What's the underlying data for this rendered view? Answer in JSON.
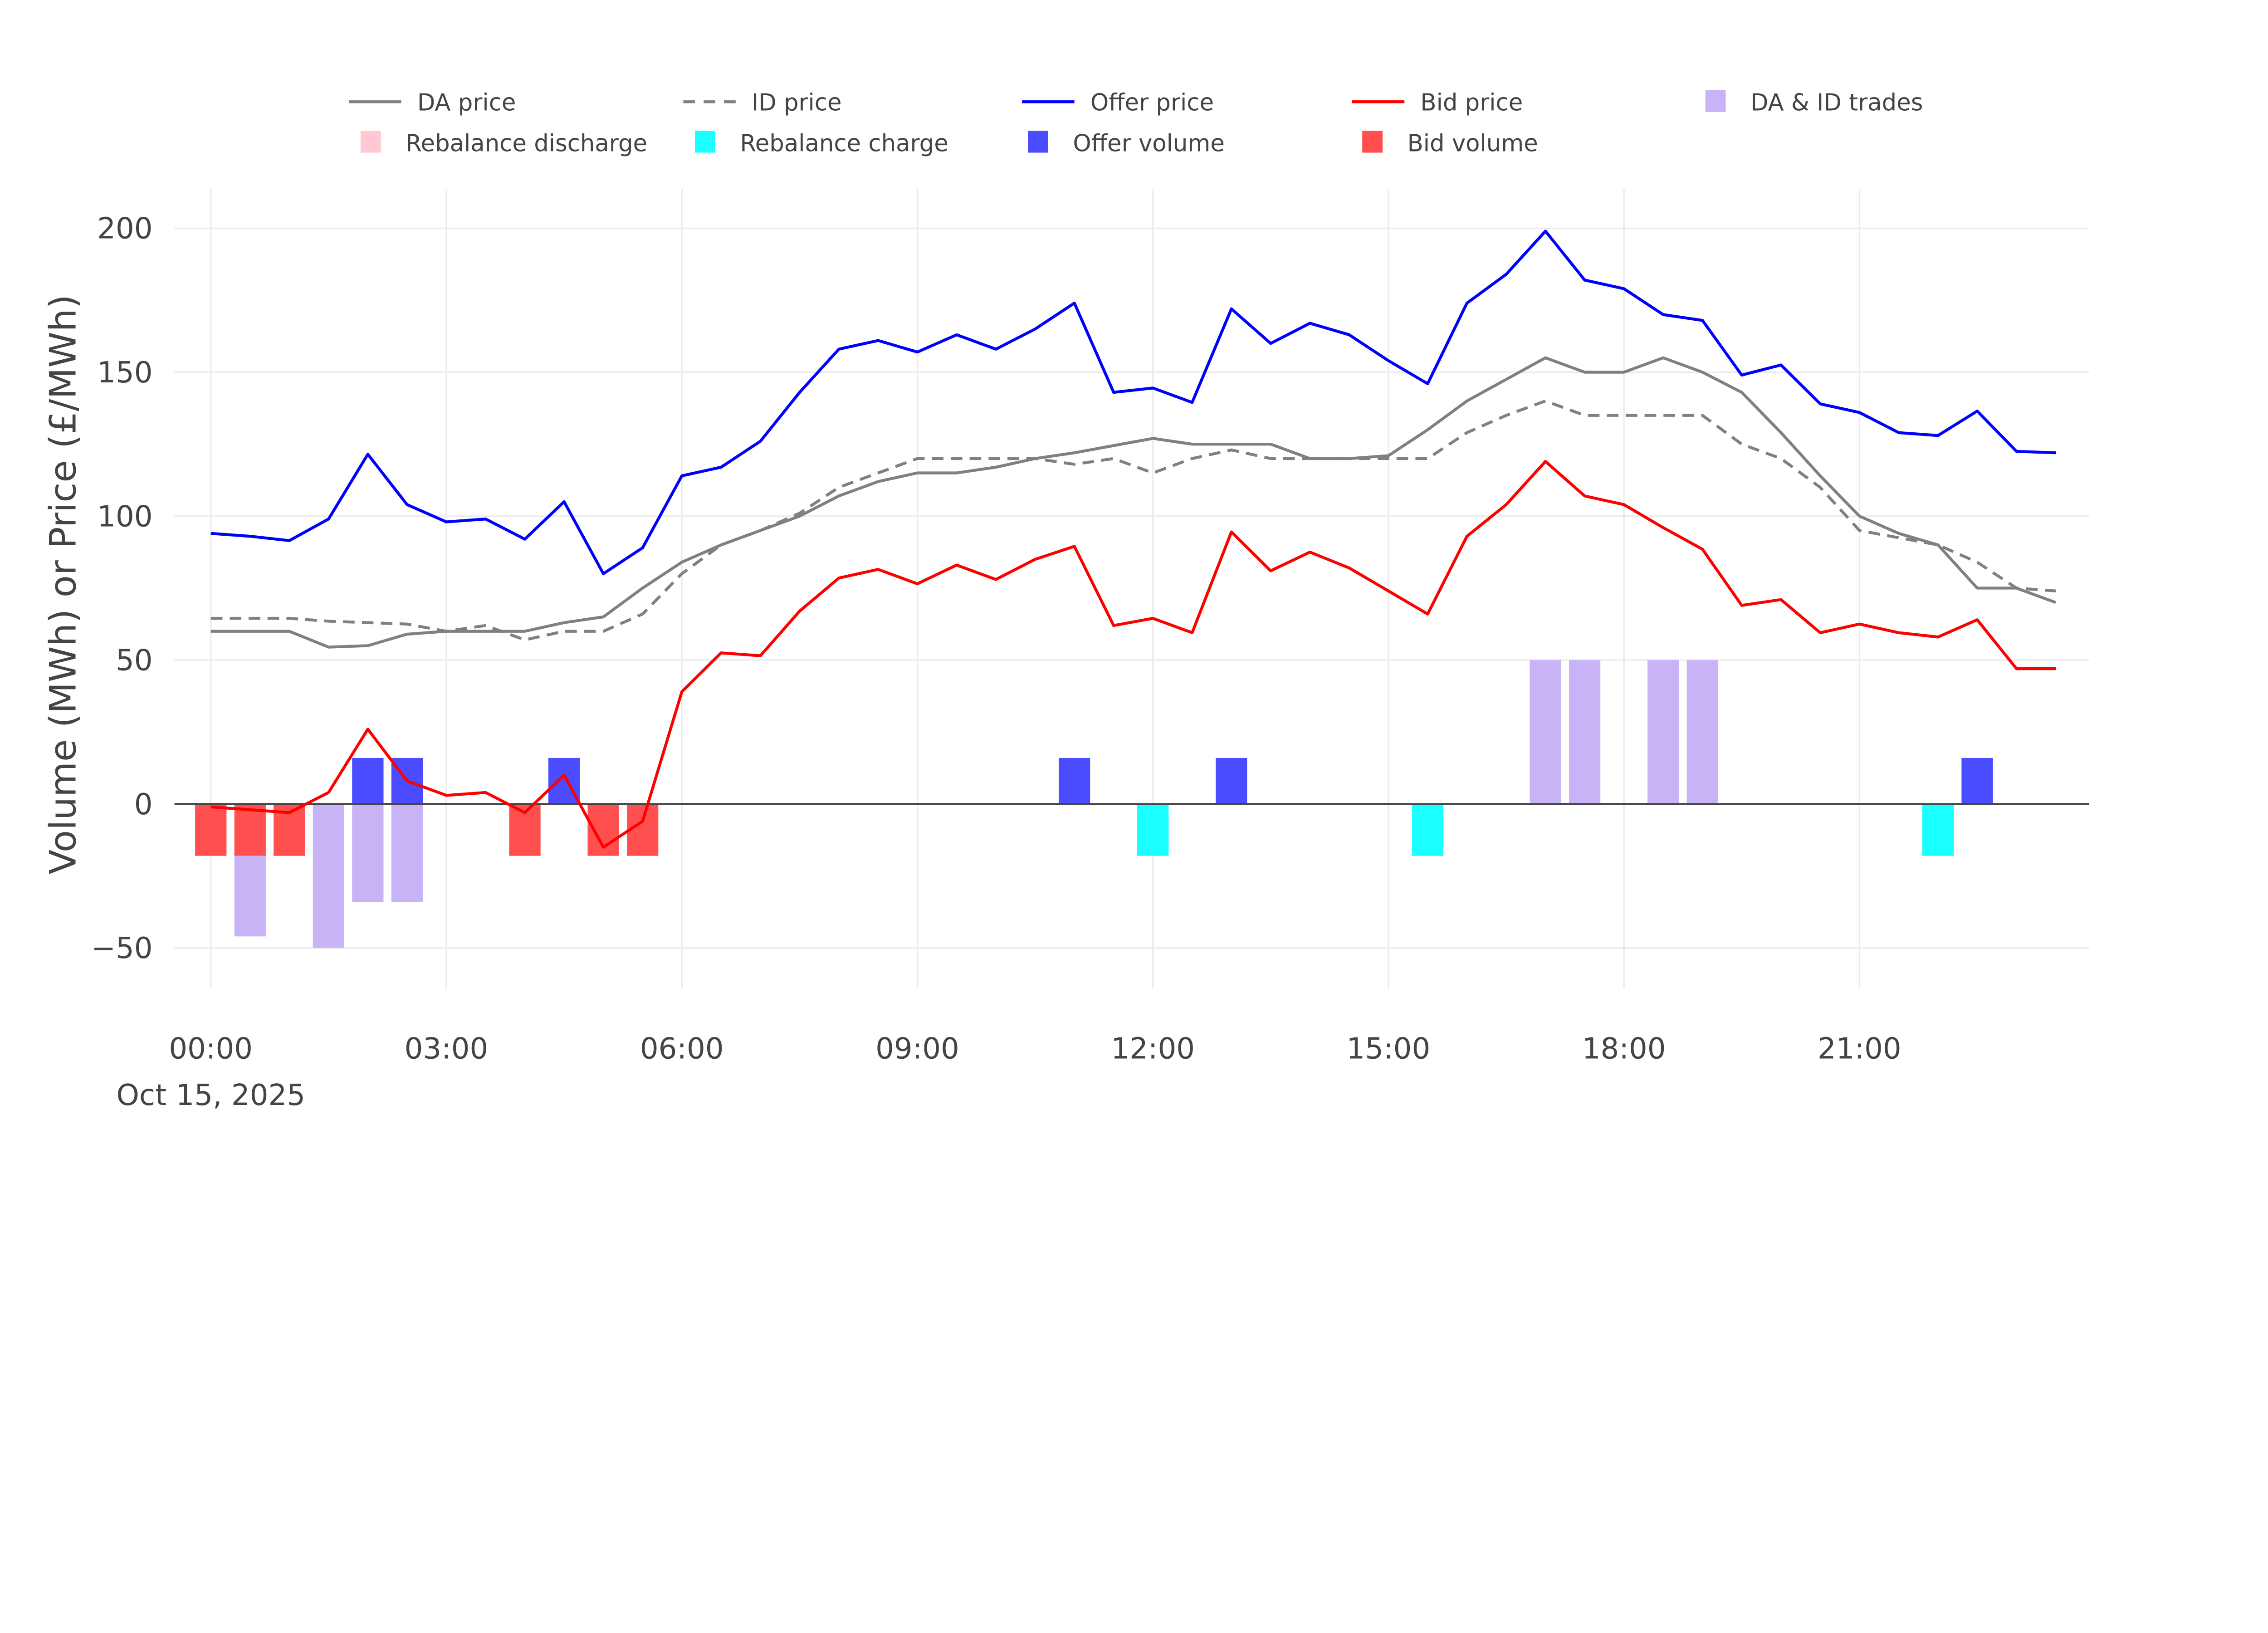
{
  "chart_data": {
    "type": "line+bar",
    "title": "",
    "xlabel": "",
    "ylabel": "Volume (MWh) or Price (£/MWh)",
    "ylim": [
      -62,
      215
    ],
    "xlim_hours": [
      -0.5,
      24
    ],
    "grid": true,
    "legend_placement": "top-center",
    "date_label": "Oct 15, 2025",
    "x_ticks": [
      "00:00",
      "03:00",
      "06:00",
      "09:00",
      "12:00",
      "15:00",
      "18:00",
      "21:00"
    ],
    "y_ticks": [
      -50,
      0,
      50,
      100,
      150,
      200
    ],
    "times": [
      "00:00",
      "00:30",
      "01:00",
      "01:30",
      "02:00",
      "02:30",
      "03:00",
      "03:30",
      "04:00",
      "04:30",
      "05:00",
      "05:30",
      "06:00",
      "06:30",
      "07:00",
      "07:30",
      "08:00",
      "08:30",
      "09:00",
      "09:30",
      "10:00",
      "10:30",
      "11:00",
      "11:30",
      "12:00",
      "12:30",
      "13:00",
      "13:30",
      "14:00",
      "14:30",
      "15:00",
      "15:30",
      "16:00",
      "16:30",
      "17:00",
      "17:30",
      "18:00",
      "18:30",
      "19:00",
      "19:30",
      "20:00",
      "20:30",
      "21:00",
      "21:30",
      "22:00",
      "22:30",
      "23:00",
      "23:30"
    ],
    "line_series": [
      {
        "name": "DA price",
        "color": "#808080",
        "dash": false,
        "values": [
          60,
          60,
          60,
          54.5,
          55,
          59,
          60,
          60,
          60,
          63,
          65,
          75,
          84,
          90,
          95,
          100,
          107,
          112,
          115,
          115,
          117,
          120,
          122,
          124.5,
          127,
          125,
          125,
          125,
          120,
          120,
          121,
          130,
          140,
          147.5,
          155,
          150,
          150,
          155,
          150,
          143,
          129,
          114,
          100,
          94,
          90,
          75,
          75,
          70
        ]
      },
      {
        "name": "ID price",
        "color": "#808080",
        "dash": true,
        "values": [
          64.5,
          64.5,
          64.5,
          63.5,
          63,
          62.5,
          60,
          62,
          57,
          60,
          60,
          66,
          80,
          90,
          95,
          101,
          110,
          115,
          120,
          120,
          120,
          120,
          118,
          120,
          115,
          120,
          123,
          120,
          120,
          120,
          120,
          120,
          129,
          135,
          140,
          135,
          135,
          135,
          135,
          125,
          120,
          110,
          95,
          92.5,
          90,
          84,
          75,
          74
        ]
      },
      {
        "name": "Offer price",
        "color": "#0000ff",
        "dash": false,
        "values": [
          94,
          93,
          91.5,
          99,
          121.5,
          104,
          98,
          99,
          92,
          105,
          80,
          89,
          114,
          117,
          126,
          143,
          158,
          161,
          157,
          163,
          158,
          165,
          174,
          143,
          144.5,
          139.5,
          172,
          160,
          167,
          163,
          154,
          146,
          174,
          184,
          199,
          182,
          179,
          170,
          168,
          149,
          152.5,
          139,
          136,
          129,
          128,
          136.5,
          122.5,
          122
        ]
      },
      {
        "name": "Bid price",
        "color": "#ff0000",
        "dash": false,
        "values": [
          -1,
          -2,
          -3,
          4,
          26,
          8,
          3,
          4,
          -3,
          10,
          -15,
          -6,
          39,
          52.5,
          51.5,
          67,
          78.5,
          81.5,
          76.5,
          83,
          78,
          85,
          89.5,
          62,
          64.5,
          59.5,
          94.5,
          81,
          87.5,
          82,
          74,
          66,
          93,
          104,
          119,
          107,
          104,
          96,
          88.5,
          69,
          71,
          59.5,
          62.5,
          59.5,
          58,
          64,
          47,
          47
        ]
      }
    ],
    "bar_series": [
      {
        "name": "Rebalance discharge",
        "color": "#ffc8d2",
        "points": []
      },
      {
        "name": "Rebalance charge",
        "color": "#1affff",
        "points": [
          {
            "t": "12:00",
            "v": -18
          },
          {
            "t": "15:30",
            "v": -18
          },
          {
            "t": "22:00",
            "v": -18
          }
        ]
      },
      {
        "name": "Offer volume",
        "color": "#4b4bff",
        "points": [
          {
            "t": "02:00",
            "v": 16
          },
          {
            "t": "02:30",
            "v": 16
          },
          {
            "t": "04:30",
            "v": 16
          },
          {
            "t": "11:00",
            "v": 16
          },
          {
            "t": "13:00",
            "v": 16
          },
          {
            "t": "22:30",
            "v": 16
          }
        ]
      },
      {
        "name": "Bid volume",
        "color": "#ff4f4f",
        "points": [
          {
            "t": "00:00",
            "v": -18
          },
          {
            "t": "00:30",
            "v": -18
          },
          {
            "t": "01:00",
            "v": -18
          },
          {
            "t": "04:00",
            "v": -18
          },
          {
            "t": "05:00",
            "v": -18
          },
          {
            "t": "05:30",
            "v": -18
          }
        ]
      },
      {
        "name": "DA & ID trades",
        "color": "#c9b3f7",
        "points": [
          {
            "t": "00:30",
            "v": -28
          },
          {
            "t": "01:30",
            "v": -50
          },
          {
            "t": "02:00",
            "v": -34
          },
          {
            "t": "02:30",
            "v": -34
          },
          {
            "t": "17:00",
            "v": 50
          },
          {
            "t": "17:30",
            "v": 50
          },
          {
            "t": "18:30",
            "v": 50
          },
          {
            "t": "19:00",
            "v": 50
          }
        ]
      }
    ],
    "legend": [
      {
        "label": "DA price",
        "kind": "line"
      },
      {
        "label": "ID price",
        "kind": "dash"
      },
      {
        "label": "Offer price",
        "kind": "line"
      },
      {
        "label": "Bid price",
        "kind": "line"
      },
      {
        "label": "DA & ID trades",
        "kind": "box"
      },
      {
        "label": "Rebalance discharge",
        "kind": "box"
      },
      {
        "label": "Rebalance charge",
        "kind": "box"
      },
      {
        "label": "Offer volume",
        "kind": "box"
      },
      {
        "label": "Bid volume",
        "kind": "box"
      }
    ]
  }
}
